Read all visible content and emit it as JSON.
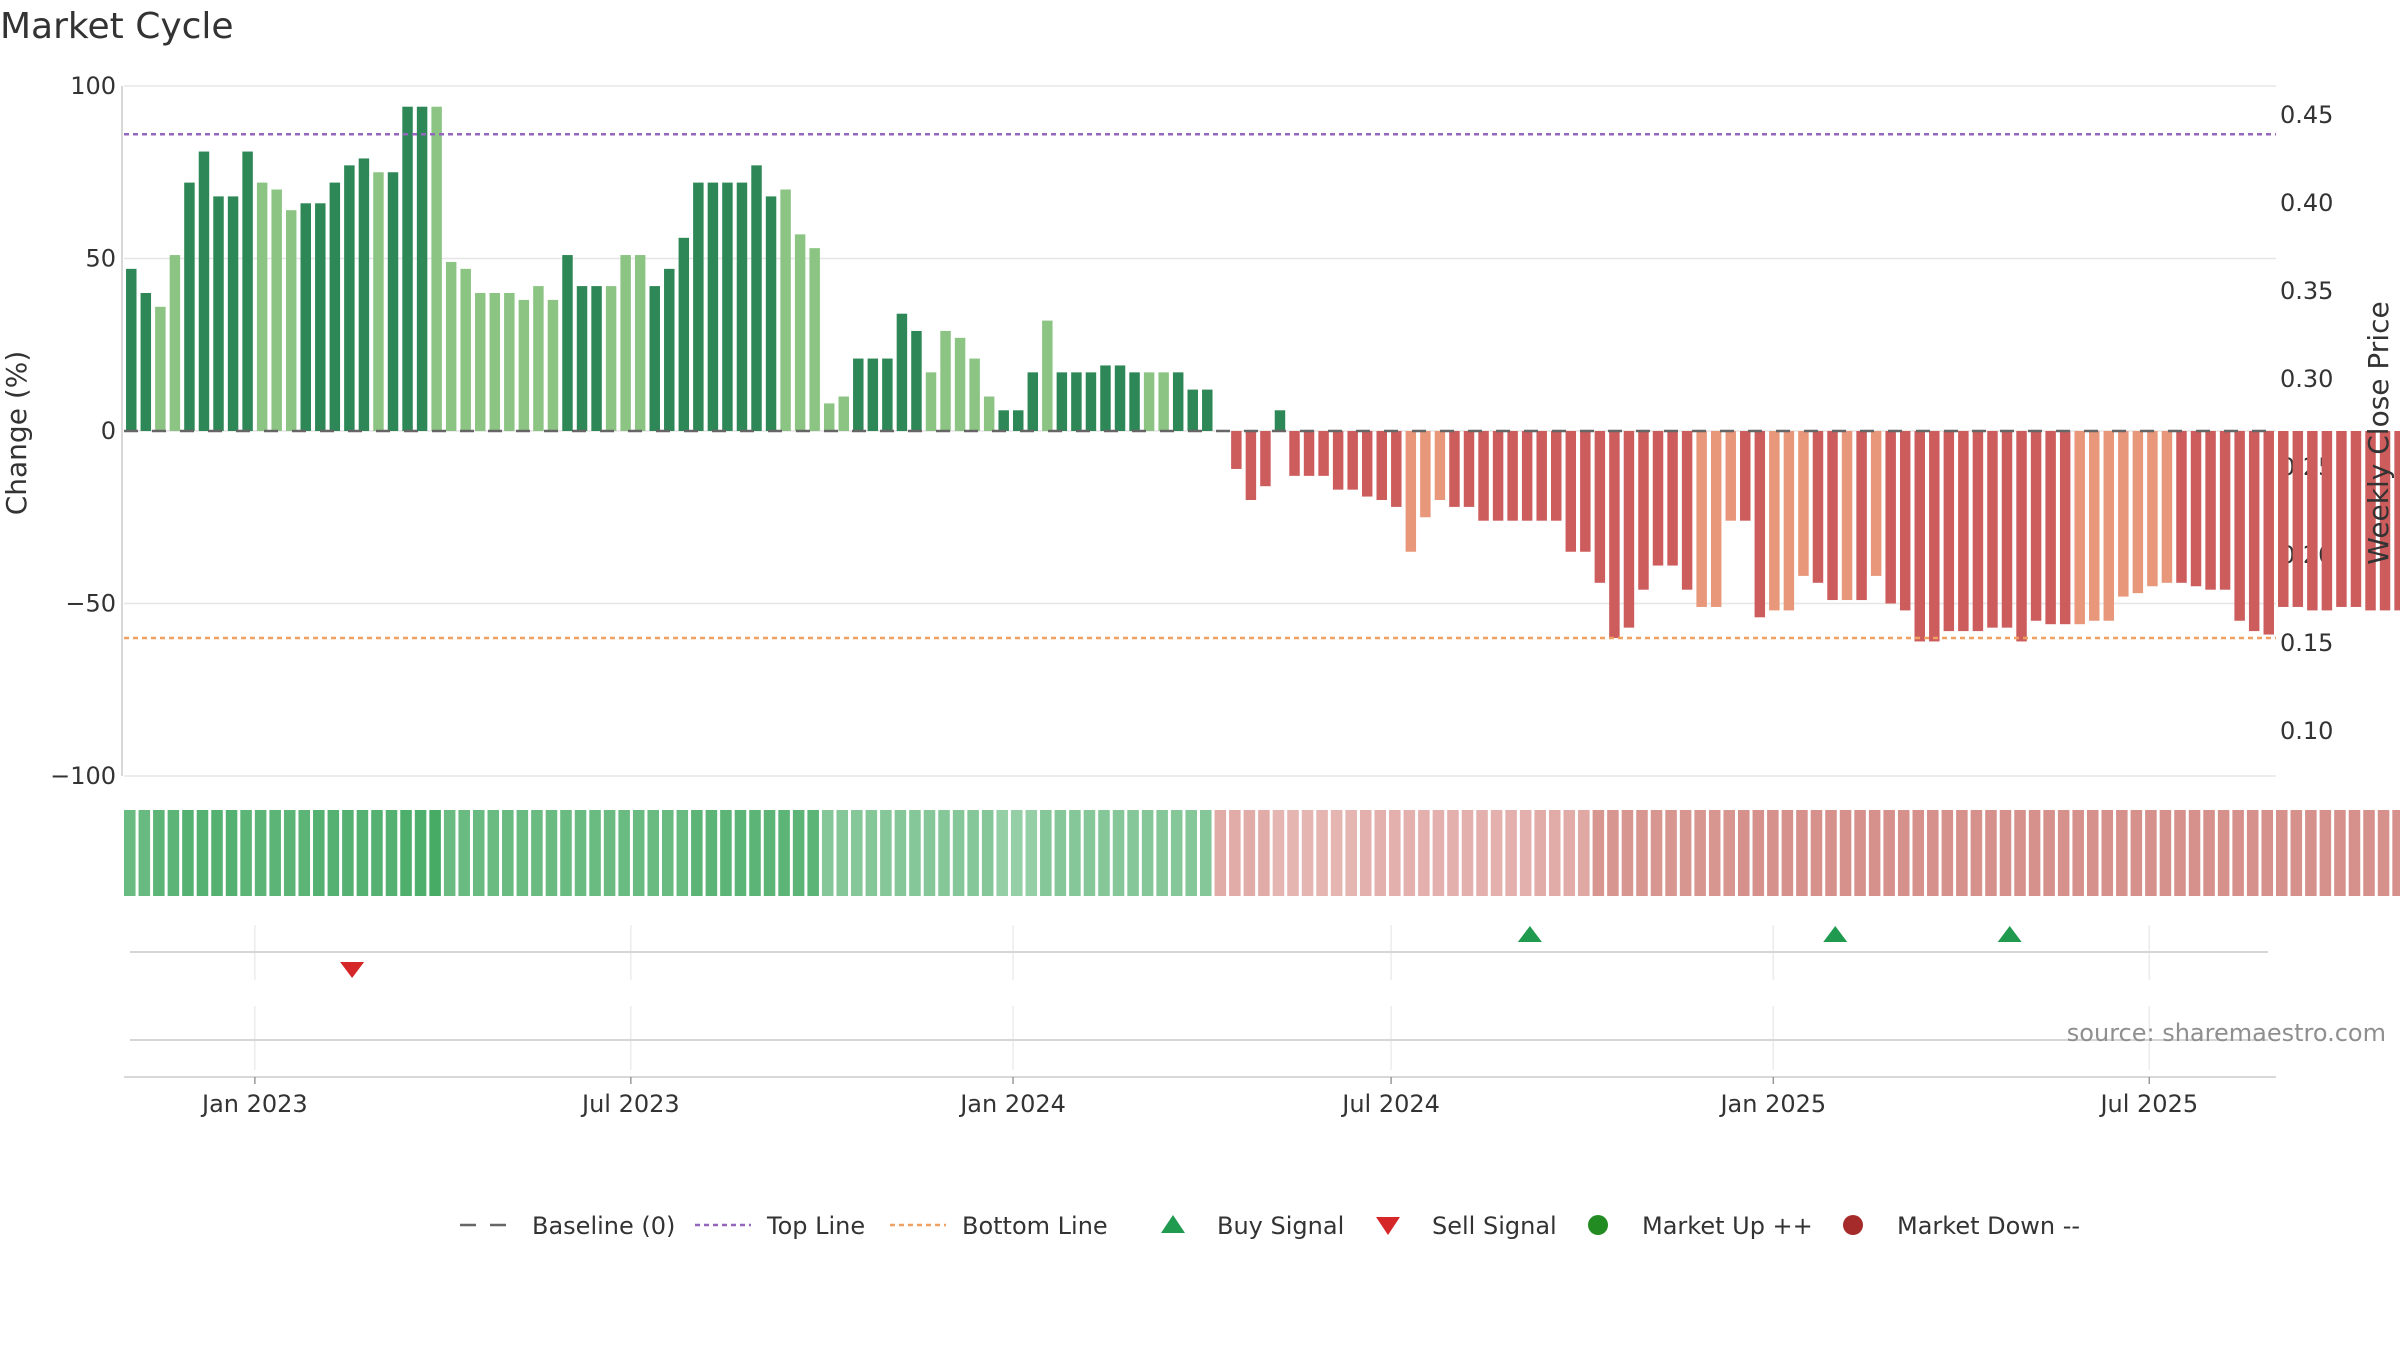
{
  "chart_data": {
    "type": "bar",
    "title": "Market Cycle",
    "ylabel_left": "Change (%)",
    "ylabel_right": "Weekly Close Price",
    "source": "source: sharemaestro.com",
    "ylim_left": [
      -100,
      100
    ],
    "yticks_left": [
      "100",
      "50",
      "0",
      "−50",
      "−100"
    ],
    "ylim_right": [
      0.075,
      0.47
    ],
    "yticks_right": [
      "0.45",
      "0.40",
      "0.35",
      "0.30",
      "0.25",
      "0.20",
      "0.15",
      "0.10"
    ],
    "x_start": "2022-10-30",
    "x_end": "2025-08-31",
    "xticks": [
      {
        "date": "2023-01-01",
        "label": "Jan 2023"
      },
      {
        "date": "2023-07-01",
        "label": "Jul 2023"
      },
      {
        "date": "2024-01-01",
        "label": "Jan 2024"
      },
      {
        "date": "2024-07-01",
        "label": "Jul 2024"
      },
      {
        "date": "2025-01-01",
        "label": "Jan 2025"
      },
      {
        "date": "2025-07-01",
        "label": "Jul 2025"
      }
    ],
    "first_week": "2022-10-30",
    "top_line": 86,
    "bottom_line": -60,
    "baseline": 0,
    "grid": true,
    "legend_position": "bottom",
    "colors": {
      "up_strong": "#2e8756",
      "up_light": "#8cc484",
      "down_strong": "#cd5c5c",
      "down_light": "#e8977a",
      "top_line": "#9467bd",
      "bottom_line": "#f0a060",
      "baseline": "#666666",
      "buy": "#1f9a4f",
      "sell": "#d62728",
      "market_up": "#228b22",
      "market_down": "#a52a2a"
    },
    "weekly_change": [
      47,
      40,
      36,
      51,
      72,
      81,
      68,
      68,
      81,
      72,
      70,
      64,
      66,
      66,
      72,
      77,
      79,
      75,
      75,
      94,
      94,
      94,
      49,
      47,
      40,
      40,
      40,
      38,
      42,
      38,
      51,
      42,
      42,
      42,
      51,
      51,
      42,
      47,
      56,
      72,
      72,
      72,
      72,
      77,
      68,
      70,
      57,
      53,
      8,
      10,
      21,
      21,
      21,
      34,
      29,
      17,
      29,
      27,
      21,
      10,
      6,
      6,
      17,
      32,
      17,
      17,
      17,
      19,
      19,
      17,
      17,
      17,
      17,
      12,
      12,
      0,
      -11,
      -20,
      -16,
      6,
      -13,
      -13,
      -13,
      -17,
      -17,
      -19,
      -20,
      -22,
      -35,
      -25,
      -20,
      -22,
      -22,
      -26,
      -26,
      -26,
      -26,
      -26,
      -26,
      -35,
      -35,
      -44,
      -60,
      -57,
      -46,
      -39,
      -39,
      -46,
      -51,
      -51,
      -26,
      -26,
      -54,
      -52,
      -52,
      -42,
      -44,
      -49,
      -49,
      -49,
      -42,
      -50,
      -52,
      -61,
      -61,
      -58,
      -58,
      -58,
      -57,
      -57,
      -61,
      -55,
      -56,
      -56,
      -56,
      -55,
      -55,
      -48,
      -47,
      -45,
      -44,
      -44,
      -45,
      -46,
      -46,
      -55,
      -58,
      -59,
      -51,
      -51,
      -52,
      -52,
      -51,
      -51,
      -52,
      -52,
      -52,
      -48
    ],
    "bar_shade": "ssllssssslllssssslssslllllllllssslllssssssssslllllssssslllllssslssssssllsssssssssssssssslllssssssssssssssssslllsslllsslslssssssssssssslllllllsssssssssssssssssssssl",
    "strength_band": [
      62,
      63,
      72,
      72,
      77,
      77,
      77,
      77,
      72,
      72,
      72,
      72,
      72,
      77,
      77,
      77,
      77,
      77,
      77,
      82,
      82,
      87,
      62,
      62,
      62,
      62,
      62,
      62,
      62,
      62,
      62,
      62,
      62,
      62,
      62,
      62,
      62,
      62,
      62,
      72,
      72,
      72,
      72,
      72,
      72,
      72,
      72,
      72,
      42,
      42,
      42,
      42,
      42,
      42,
      42,
      42,
      42,
      42,
      42,
      42,
      30,
      30,
      30,
      42,
      42,
      42,
      42,
      42,
      42,
      42,
      42,
      42,
      42,
      42,
      42,
      -30,
      -30,
      -30,
      -30,
      -20,
      -20,
      -20,
      -20,
      -20,
      -20,
      -25,
      -25,
      -25,
      -25,
      -25,
      -25,
      -25,
      -25,
      -25,
      -25,
      -25,
      -25,
      -30,
      -30,
      -30,
      -35,
      -55,
      -55,
      -55,
      -55,
      -55,
      -55,
      -55,
      -55,
      -55,
      -55,
      -60,
      -60,
      -60,
      -60,
      -60,
      -60,
      -60,
      -60,
      -60,
      -60,
      -60,
      -60,
      -60,
      -60,
      -60,
      -60,
      -60,
      -60,
      -60,
      -60,
      -60,
      -60,
      -60,
      -60,
      -60,
      -60,
      -60,
      -60,
      -60,
      -60,
      -60,
      -60,
      -60,
      -60,
      -60,
      -60,
      -60,
      -60,
      -60,
      -60,
      -60,
      -60,
      -60,
      -60,
      -60,
      -60,
      -60,
      -60,
      -60,
      -60,
      -60,
      -60
    ],
    "buy_signals": [
      "2024-09-01",
      "2025-01-26",
      "2025-04-20"
    ],
    "sell_signals": [
      "2023-02-12"
    ],
    "legend": [
      {
        "label": "Baseline (0)",
        "kind": "dash",
        "color": "#666666"
      },
      {
        "label": "Top Line",
        "kind": "dot",
        "color": "#9467bd"
      },
      {
        "label": "Bottom Line",
        "kind": "dot",
        "color": "#f0a060"
      },
      {
        "label": "Buy Signal",
        "kind": "tri-up",
        "color": "#1f9a4f"
      },
      {
        "label": "Sell Signal",
        "kind": "tri-down",
        "color": "#d62728"
      },
      {
        "label": "Market Up ++",
        "kind": "circle",
        "color": "#228b22"
      },
      {
        "label": "Market Down --",
        "kind": "circle",
        "color": "#a52a2a"
      }
    ]
  }
}
